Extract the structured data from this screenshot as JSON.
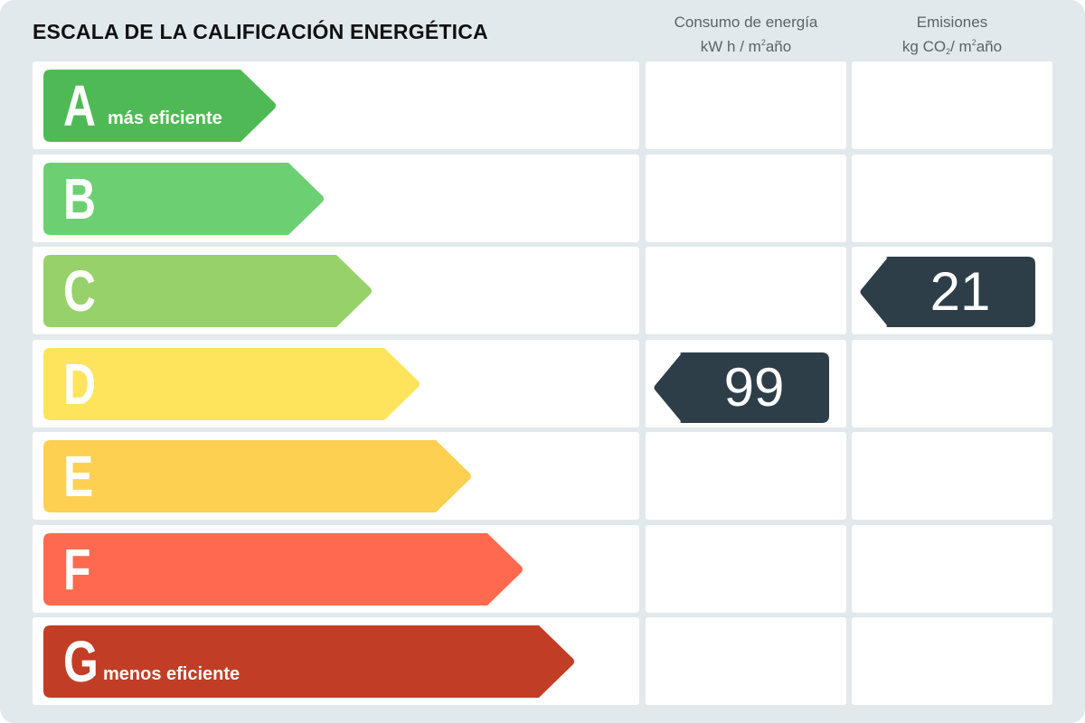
{
  "title": "ESCALA DE LA CALIFICACIÓN ENERGÉTICA",
  "columns": {
    "energy": {
      "line1": "Consumo de energía",
      "line2_pre": "kW h / m",
      "line2_sup": "2",
      "line2_post": "año"
    },
    "emissions": {
      "line1": "Emisiones",
      "line2_pre": "kg CO",
      "line2_sub": "2",
      "line2_mid": "/ m",
      "line2_sup": "2",
      "line2_post": "año"
    }
  },
  "classes": [
    {
      "letter": "A",
      "sublabel": "más eficiente",
      "color": "#4fba55",
      "length": 1
    },
    {
      "letter": "B",
      "sublabel": "",
      "color": "#6ccf72",
      "length": 2
    },
    {
      "letter": "C",
      "sublabel": "",
      "color": "#97d16a",
      "length": 3
    },
    {
      "letter": "D",
      "sublabel": "",
      "color": "#fde45c",
      "length": 4
    },
    {
      "letter": "E",
      "sublabel": "",
      "color": "#fdd052",
      "length": 5
    },
    {
      "letter": "F",
      "sublabel": "",
      "color": "#fd6a50",
      "length": 6
    },
    {
      "letter": "G",
      "sublabel": "menos eficiente",
      "color": "#c13d26",
      "length": 7
    }
  ],
  "ratings": {
    "energy": {
      "value": "99",
      "class": "D"
    },
    "emissions": {
      "value": "21",
      "class": "C"
    }
  },
  "marker_color": "#2d3e48"
}
